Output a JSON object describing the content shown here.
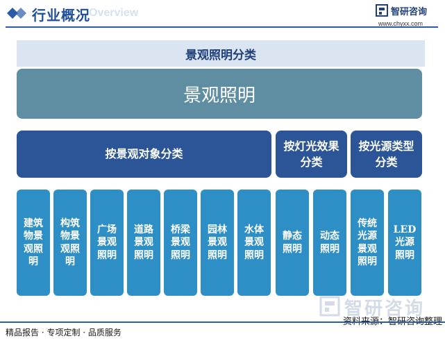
{
  "header": {
    "title": "行业概况",
    "subtitle_en": "Overview",
    "brand_name": "智研咨询",
    "brand_url": "www.chyxx.com"
  },
  "diagram": {
    "band_title": "景观照明分类",
    "root": "景观照明",
    "categories": [
      "按景观对象分类",
      "按灯光效果分类",
      "按光源类型分类"
    ],
    "leaves": [
      "建筑物景观照明",
      "构筑物景观照明",
      "广场景观照明",
      "道路景观照明",
      "桥梁景观照明",
      "园林景观照明",
      "水体景观照明",
      "静态照明",
      "动态照明",
      "传统光源景观照明",
      "LED光源照明"
    ]
  },
  "watermark": {
    "text": "智研咨询"
  },
  "source": "资料来源：智研咨询整理",
  "footer": "精品报告 · 专项定制 · 品质服务",
  "colors": {
    "accent": "#2b5ba8",
    "band": "#dbe5f1",
    "root": "#5f8ea2",
    "category": "#2b5597",
    "leaf": "#2e8fc6"
  }
}
